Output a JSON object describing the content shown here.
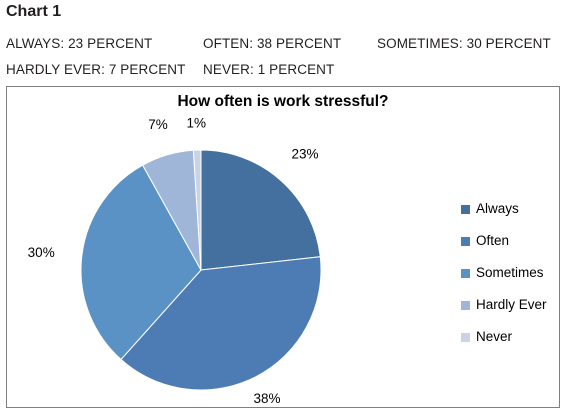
{
  "heading": "Chart 1",
  "stats": [
    "ALWAYS: 23 PERCENT",
    "OFTEN: 38 PERCENT",
    "SOMETIMES: 30 PERCENT",
    "HARDLY EVER: 7 PERCENT",
    "NEVER: 1 PERCENT"
  ],
  "chart_data": {
    "type": "pie",
    "title": "How often is work stressful?",
    "categories": [
      "Always",
      "Often",
      "Sometimes",
      "Hardly Ever",
      "Never"
    ],
    "values": [
      23,
      38,
      30,
      7,
      1
    ],
    "data_labels": [
      "23%",
      "38%",
      "30%",
      "7%",
      "1%"
    ],
    "colors": [
      "#44709f",
      "#4d7cb4",
      "#5a92c6",
      "#9fb6d8",
      "#c8d4e6"
    ],
    "legend_position": "right"
  }
}
